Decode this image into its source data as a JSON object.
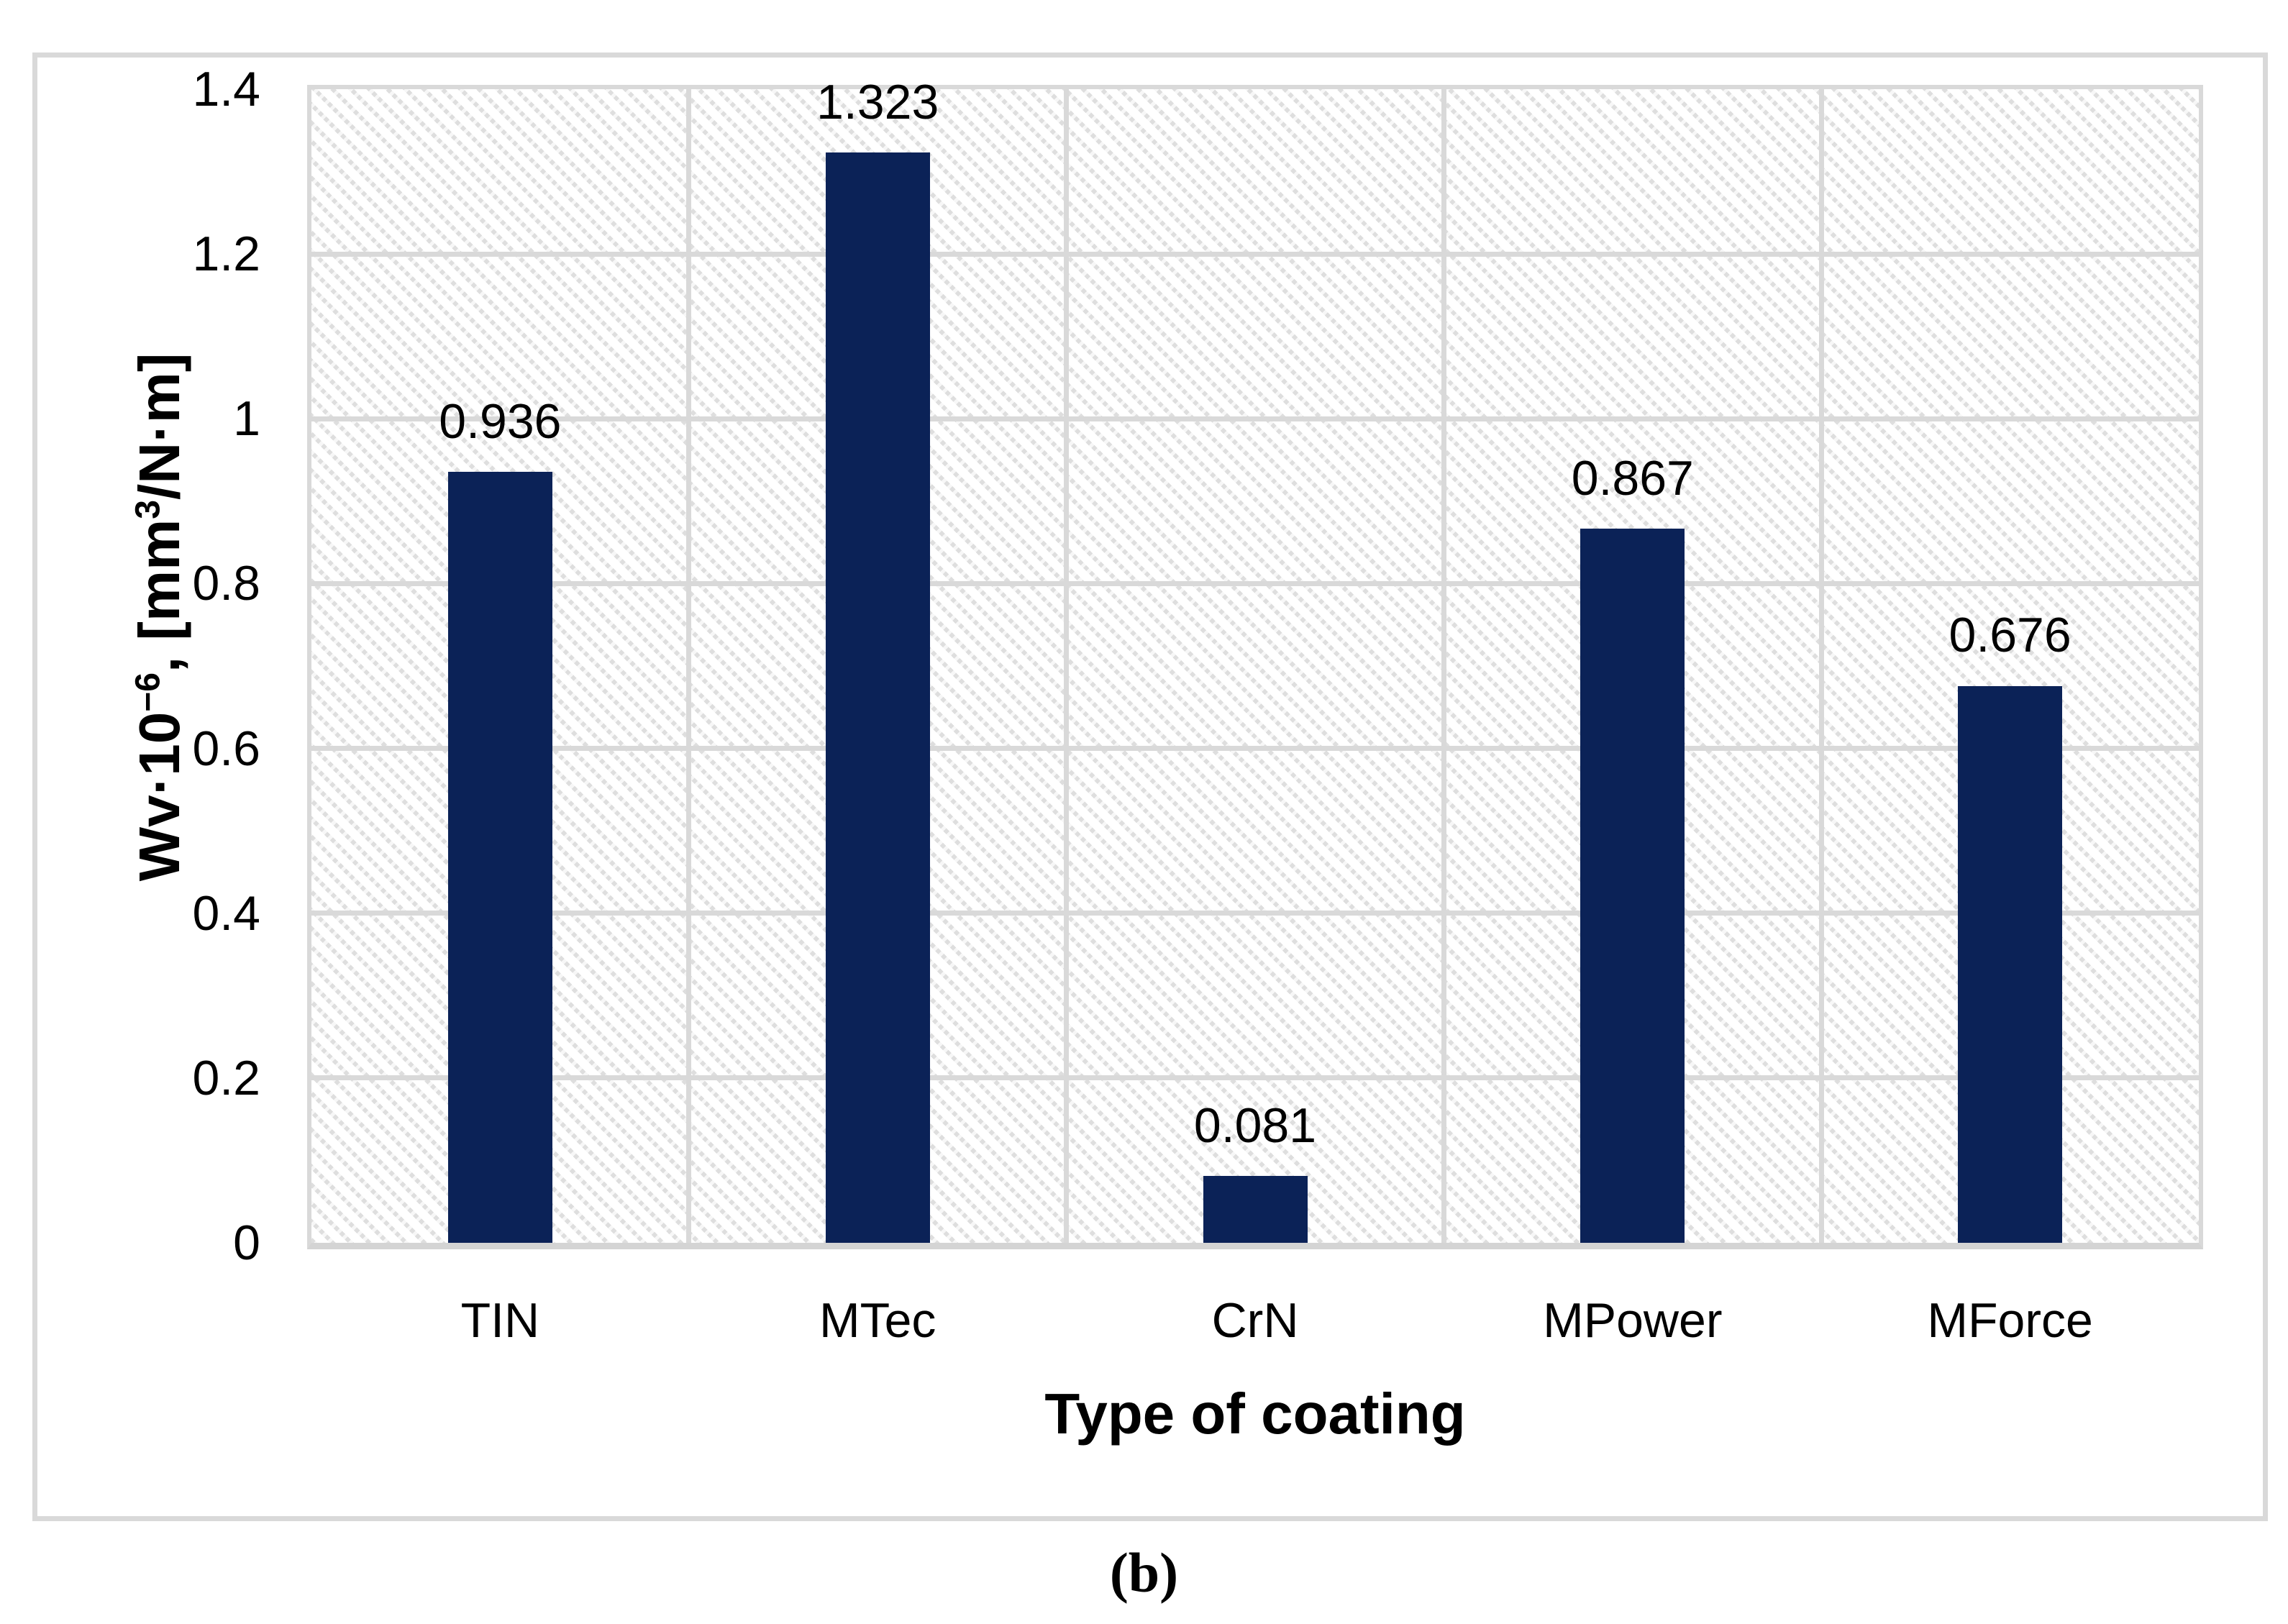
{
  "caption": "(b)",
  "chart_data": {
    "type": "bar",
    "title": "",
    "categories": [
      "TIN",
      "MTec",
      "CrN",
      "MPower",
      "MForce"
    ],
    "values": [
      0.936,
      1.323,
      0.081,
      0.867,
      0.676
    ],
    "data_labels": [
      "0.936",
      "1.323",
      "0.081",
      "0.867",
      "0.676"
    ],
    "xlabel": "Type of coating",
    "ylabel": "Wv·10⁻⁶, [mm³/N·m]",
    "ylabel_parts": {
      "base1": "Wv·10",
      "exp1": "−6",
      "base2": ", [mm",
      "exp2": "3",
      "base3": "/N·m]"
    },
    "ylim": [
      0,
      1.4
    ],
    "ytick_step": 0.2,
    "ytick_labels": [
      "0",
      "0.2",
      "0.4",
      "0.6",
      "0.8",
      "1",
      "1.2",
      "1.4"
    ],
    "grid": true,
    "legend": false,
    "bar_color": "#0b2257",
    "gridline_color": "#d9d9d9",
    "plot_background": "light diagonal hatch"
  }
}
